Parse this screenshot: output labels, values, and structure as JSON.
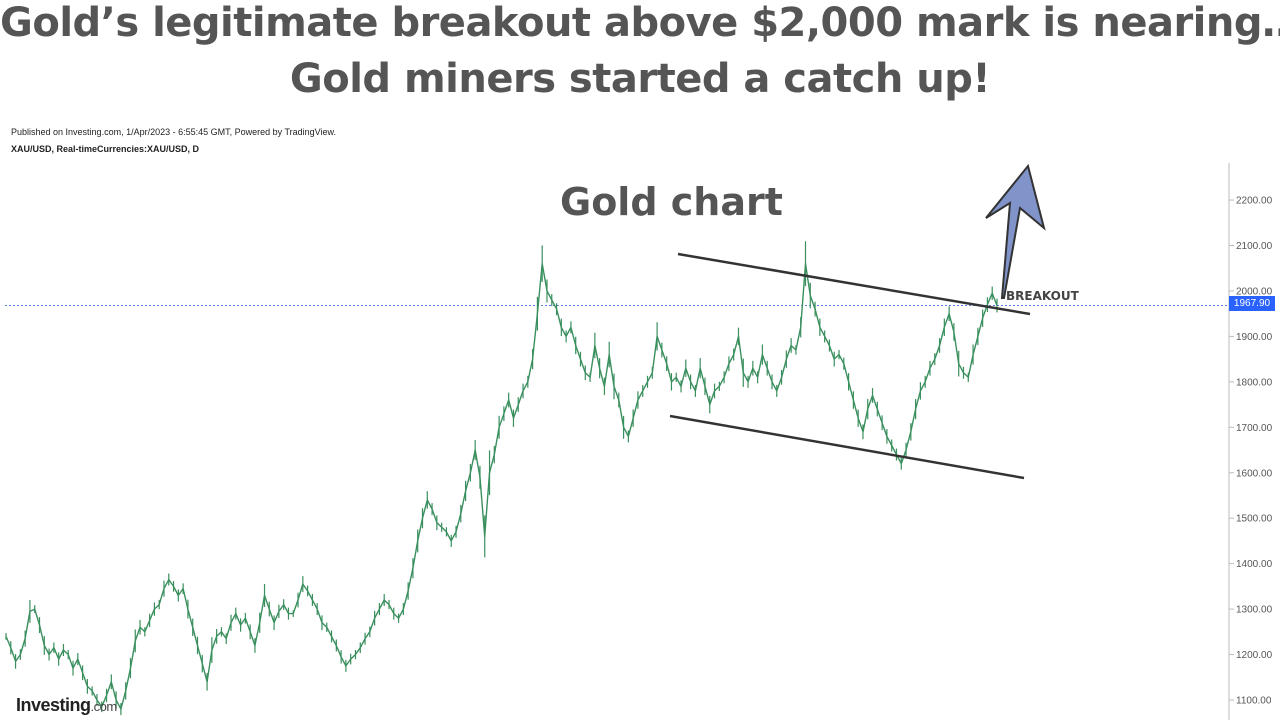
{
  "headline": {
    "line1": "Gold’s legitimate breakout above $2,000 mark is nearing…",
    "line2": "Gold miners started a catch up!"
  },
  "published_text": "Published on Investing.com, 1/Apr/2023 - 6:55:45 GMT, Powered by TradingView.",
  "symbol_text": "XAU/USD, Real-timeCurrencies:XAU/USD, D",
  "logo": {
    "main": "Investing",
    "suffix": ".com"
  },
  "colors": {
    "candle": "#3a8f5e",
    "channel": "#333333",
    "arrow_fill": "#8094c9",
    "price_line": "#2962ff",
    "headline": "#555555"
  },
  "chart_data": {
    "type": "line",
    "title": "Gold chart",
    "xlabel": "",
    "ylabel": "",
    "ylim": [
      1080,
      2230
    ],
    "y_ticks": [
      "1100.00",
      "1200.00",
      "1300.00",
      "1400.00",
      "1500.00",
      "1600.00",
      "1700.00",
      "1800.00",
      "1900.00",
      "2000.00",
      "2100.00",
      "2200.00"
    ],
    "last_price": "1967.90",
    "annotation": "BREAKOUT",
    "series": [
      {
        "values": [
          1240,
          1215,
          1185,
          1200,
          1235,
          1295,
          1300,
          1265,
          1220,
          1200,
          1215,
          1190,
          1210,
          1200,
          1170,
          1190,
          1160,
          1130,
          1120,
          1100,
          1085,
          1110,
          1140,
          1100,
          1080,
          1120,
          1170,
          1230,
          1260,
          1250,
          1275,
          1300,
          1310,
          1345,
          1365,
          1350,
          1330,
          1345,
          1300,
          1260,
          1220,
          1180,
          1140,
          1210,
          1240,
          1250,
          1235,
          1270,
          1290,
          1265,
          1280,
          1250,
          1220,
          1270,
          1330,
          1300,
          1270,
          1295,
          1310,
          1290,
          1290,
          1320,
          1355,
          1340,
          1320,
          1300,
          1270,
          1260,
          1240,
          1220,
          1195,
          1175,
          1190,
          1200,
          1215,
          1235,
          1250,
          1280,
          1300,
          1320,
          1310,
          1290,
          1280,
          1300,
          1340,
          1390,
          1450,
          1500,
          1540,
          1520,
          1490,
          1480,
          1470,
          1450,
          1470,
          1510,
          1560,
          1600,
          1650,
          1590,
          1460,
          1600,
          1640,
          1700,
          1730,
          1760,
          1720,
          1750,
          1780,
          1800,
          1850,
          1950,
          2060,
          2000,
          1980,
          1960,
          1920,
          1900,
          1920,
          1880,
          1850,
          1820,
          1810,
          1880,
          1830,
          1790,
          1860,
          1790,
          1760,
          1700,
          1680,
          1720,
          1760,
          1780,
          1800,
          1820,
          1900,
          1870,
          1840,
          1800,
          1810,
          1790,
          1830,
          1800,
          1780,
          1830,
          1790,
          1750,
          1780,
          1790,
          1810,
          1840,
          1860,
          1900,
          1820,
          1800,
          1830,
          1810,
          1860,
          1830,
          1800,
          1780,
          1810,
          1850,
          1880,
          1870,
          1920,
          2060,
          1990,
          1960,
          1920,
          1900,
          1880,
          1850,
          1860,
          1840,
          1800,
          1760,
          1720,
          1690,
          1740,
          1770,
          1740,
          1710,
          1680,
          1660,
          1640,
          1620,
          1650,
          1690,
          1740,
          1780,
          1800,
          1830,
          1850,
          1880,
          1920,
          1950,
          1910,
          1840,
          1820,
          1810,
          1860,
          1900,
          1940,
          1970,
          1995,
          1968
        ]
      }
    ]
  }
}
